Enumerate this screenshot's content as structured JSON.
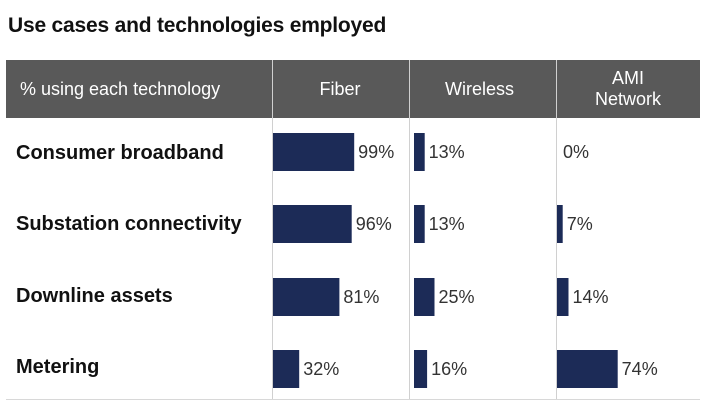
{
  "title": "Use cases and technologies employed",
  "header": {
    "row_label": "% using each technology",
    "columns": [
      "Fiber",
      "Wireless",
      "AMI\nNetwork"
    ]
  },
  "colors": {
    "bar": "#1c2b57",
    "header_bg": "#595959"
  },
  "chart_data": {
    "type": "bar",
    "orientation": "horizontal",
    "categories": [
      "Consumer broadband",
      "Substation connectivity",
      "Downline assets",
      "Metering"
    ],
    "series": [
      {
        "name": "Fiber",
        "values": [
          99,
          96,
          81,
          32
        ],
        "labels": [
          "99%",
          "96%",
          "81%",
          "32%"
        ]
      },
      {
        "name": "Wireless",
        "values": [
          13,
          13,
          25,
          16
        ],
        "labels": [
          "13%",
          "13%",
          "25%",
          "16%"
        ]
      },
      {
        "name": "AMI\nNetwork",
        "values": [
          0,
          7,
          14,
          74
        ],
        "labels": [
          "0%",
          "7%",
          "14%",
          "74%"
        ]
      }
    ],
    "xlim": [
      0,
      100
    ],
    "unit": "%"
  }
}
